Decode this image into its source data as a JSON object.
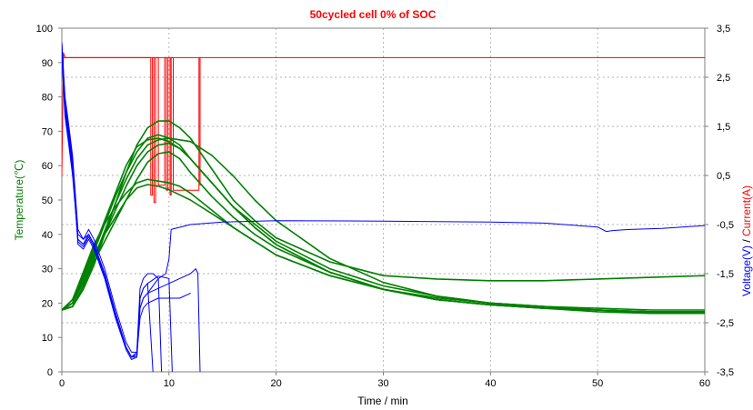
{
  "chart_data": {
    "type": "line",
    "title": "50cycled cell 0% of SOC",
    "xlabel": "Time / min",
    "ylabel_left": "Temperature(℃)",
    "ylabel_right_voltage": "Voltage(V)",
    "ylabel_right_sep": " / ",
    "ylabel_right_current": "Current(A)",
    "xlim": [
      0,
      60
    ],
    "ylim_left": [
      0,
      100
    ],
    "ylim_right": [
      -3.5,
      3.5
    ],
    "x_ticks": [
      "0",
      "10",
      "20",
      "30",
      "40",
      "50",
      "60"
    ],
    "y_left_ticks": [
      "0",
      "10",
      "20",
      "30",
      "40",
      "50",
      "60",
      "70",
      "80",
      "90",
      "100"
    ],
    "y_right_ticks": [
      "-3,5",
      "-2,5",
      "-1,5",
      "-0,5",
      "0,5",
      "1,5",
      "2,5",
      "3,5"
    ],
    "grid": true,
    "colors": {
      "temperature": "#008000",
      "voltage": "#0000ff",
      "current": "#ff0000",
      "title": "#ff0000"
    },
    "temperature_series": [
      {
        "x": [
          0,
          1,
          2,
          3,
          4,
          5,
          6,
          7,
          8,
          9,
          10,
          11,
          12,
          14,
          16,
          18,
          20,
          25,
          30,
          35,
          40,
          45,
          50,
          55,
          60
        ],
        "y": [
          18,
          19,
          24,
          31,
          40,
          49,
          58,
          66,
          71,
          73,
          73,
          71,
          68,
          59,
          50,
          44,
          39,
          32,
          28,
          27,
          26.5,
          26.5,
          27,
          27.5,
          28
        ]
      },
      {
        "x": [
          0,
          1,
          2,
          3,
          4,
          5,
          6,
          7,
          8,
          9,
          10,
          11,
          12,
          14,
          16,
          18,
          20,
          25,
          30,
          35,
          40,
          45,
          50,
          55,
          60
        ],
        "y": [
          18,
          19,
          25,
          33,
          41,
          49,
          56,
          62,
          66,
          67.5,
          68,
          67.5,
          67,
          63,
          57,
          50,
          44,
          33,
          26,
          22,
          20,
          19,
          18.5,
          18,
          18
        ]
      },
      {
        "x": [
          0,
          1,
          2,
          3,
          4,
          5,
          6,
          7,
          8,
          9,
          10,
          11,
          12,
          14,
          16,
          18,
          20,
          25,
          30,
          35,
          40,
          45,
          50,
          55,
          60
        ],
        "y": [
          18,
          20,
          27,
          35,
          43,
          51,
          58,
          64,
          68,
          69,
          68,
          66,
          62,
          55,
          48,
          43,
          38,
          30,
          25,
          22,
          20,
          19,
          18,
          17.5,
          17.5
        ]
      },
      {
        "x": [
          0,
          1,
          2,
          3,
          4,
          5,
          6,
          7,
          8,
          9,
          10,
          11,
          12,
          14,
          16,
          18,
          20,
          25,
          30,
          35,
          40,
          45,
          50,
          55,
          60
        ],
        "y": [
          18,
          20,
          26,
          33,
          40,
          47,
          54,
          60,
          64,
          66,
          66.5,
          65,
          62,
          55,
          48,
          42,
          37,
          29,
          24,
          21,
          19.5,
          18.5,
          18,
          17.5,
          17
        ]
      },
      {
        "x": [
          0,
          1,
          2,
          3,
          4,
          5,
          6,
          7,
          8,
          9,
          10,
          11,
          12,
          14,
          16,
          18,
          20,
          25,
          30,
          35,
          40,
          45,
          50,
          55,
          60
        ],
        "y": [
          18,
          19,
          25,
          32,
          38,
          44,
          50,
          56,
          61,
          63.5,
          64,
          62,
          58,
          51,
          45,
          40,
          36,
          29,
          24,
          21,
          19.5,
          18.5,
          18,
          17,
          17
        ]
      },
      {
        "x": [
          0,
          1,
          2,
          3,
          4,
          5,
          6,
          7,
          8,
          9,
          10,
          11,
          12,
          14,
          16,
          18,
          20,
          25,
          30,
          35,
          40,
          45,
          50,
          55,
          60
        ],
        "y": [
          18,
          21,
          29,
          37,
          43,
          48,
          52,
          55,
          56,
          55.5,
          55,
          54,
          52,
          47,
          42,
          38,
          34,
          28,
          24,
          21,
          19.5,
          18.5,
          18,
          17.5,
          17.5
        ]
      },
      {
        "x": [
          0,
          1,
          2,
          3,
          4,
          5,
          6,
          7,
          8,
          9,
          10,
          11,
          12,
          14,
          16,
          18,
          20,
          25,
          30,
          35,
          40,
          45,
          50,
          55,
          60
        ],
        "y": [
          18,
          21,
          27,
          34,
          40,
          45,
          50,
          53.5,
          54.5,
          54,
          53,
          51.5,
          50,
          46,
          42,
          38,
          34,
          28,
          24,
          21.5,
          20,
          19,
          18,
          17.5,
          17.5
        ]
      },
      {
        "x": [
          0,
          1,
          2,
          3,
          4,
          5,
          6,
          7,
          8,
          9,
          10,
          11,
          12,
          14,
          16,
          18,
          20,
          25,
          30,
          35,
          40,
          45,
          50,
          55,
          60
        ],
        "y": [
          18,
          20,
          28,
          36,
          44,
          52,
          60,
          65.5,
          67.5,
          68,
          67,
          65,
          62,
          55,
          48,
          42,
          37,
          29,
          24,
          21,
          19.5,
          18.5,
          17.5,
          17,
          17
        ]
      }
    ],
    "voltage_series": [
      {
        "x": [
          0,
          0.3,
          0.6,
          1,
          1.5,
          2,
          2.5,
          3,
          3.5,
          4,
          5,
          6,
          6.5,
          7,
          7.3,
          7.6,
          8,
          9,
          9.7,
          10,
          10.2,
          12,
          15,
          20,
          30,
          40,
          45,
          50,
          50.8,
          51.5,
          53,
          56,
          60
        ],
        "y": [
          3.2,
          2.0,
          1.5,
          0.8,
          -0.8,
          -0.9,
          -0.7,
          -0.9,
          -1.2,
          -1.5,
          -2.3,
          -3.0,
          -3.2,
          -3.2,
          -2.2,
          -2.0,
          -1.9,
          -1.6,
          -1.5,
          -1.2,
          -0.6,
          -0.5,
          -0.45,
          -0.42,
          -0.43,
          -0.45,
          -0.47,
          -0.55,
          -0.64,
          -0.62,
          -0.6,
          -0.58,
          -0.52
        ]
      },
      {
        "x": [
          0,
          0.3,
          0.6,
          1,
          1.5,
          2,
          2.5,
          3,
          3.5,
          4,
          5,
          6,
          6.5,
          7,
          7.3,
          7.6,
          8,
          8.5
        ],
        "y": [
          3.1,
          1.9,
          1.4,
          0.7,
          -0.9,
          -1.0,
          -0.8,
          -1.0,
          -1.3,
          -1.6,
          -2.4,
          -3.05,
          -3.25,
          -3.2,
          -2.0,
          -1.8,
          -1.7,
          -3.5
        ]
      },
      {
        "x": [
          0,
          0.3,
          0.6,
          1,
          1.5,
          2,
          2.5,
          3,
          3.5,
          4,
          5,
          6,
          6.5,
          7,
          7.3,
          7.6,
          8,
          8.5,
          9,
          9.3
        ],
        "y": [
          3.0,
          1.8,
          1.3,
          0.6,
          -0.7,
          -0.8,
          -0.6,
          -0.8,
          -1.1,
          -1.4,
          -2.2,
          -2.9,
          -3.1,
          -3.1,
          -1.8,
          -1.6,
          -1.5,
          -1.5,
          -1.6,
          -3.5
        ]
      },
      {
        "x": [
          0,
          0.3,
          0.6,
          1,
          1.5,
          2,
          2.5,
          3,
          3.5,
          4,
          5,
          6,
          6.5,
          7,
          7.3,
          7.6,
          8,
          9,
          10,
          10.3
        ],
        "y": [
          3.2,
          2.1,
          1.6,
          0.9,
          -0.6,
          -0.8,
          -0.7,
          -0.9,
          -1.2,
          -1.5,
          -2.3,
          -3.0,
          -3.2,
          -3.1,
          -2.0,
          -1.8,
          -1.7,
          -1.55,
          -1.6,
          -3.5
        ]
      },
      {
        "x": [
          0,
          0.3,
          0.6,
          1,
          1.5,
          2,
          2.5,
          3,
          3.5,
          4,
          5,
          6,
          6.5,
          7,
          7.3,
          7.6,
          8,
          9,
          10,
          11,
          12
        ],
        "y": [
          2.9,
          1.7,
          1.2,
          0.5,
          -0.8,
          -0.9,
          -0.7,
          -0.9,
          -1.2,
          -1.5,
          -2.3,
          -3.0,
          -3.2,
          -3.15,
          -2.4,
          -2.2,
          -2.1,
          -2.0,
          -2.0,
          -2.0,
          -1.9
        ]
      },
      {
        "x": [
          0,
          0.3,
          0.6,
          1,
          1.5,
          2,
          2.5,
          3,
          3.5,
          4,
          5,
          6,
          6.5,
          7,
          7.3,
          7.6,
          8,
          9,
          10,
          11,
          12,
          12.5,
          12.7,
          12.9
        ],
        "y": [
          3.1,
          1.9,
          1.4,
          0.8,
          -0.85,
          -0.95,
          -0.75,
          -0.95,
          -1.25,
          -1.55,
          -2.35,
          -3.0,
          -3.2,
          -3.15,
          -2.2,
          -2.0,
          -1.9,
          -1.8,
          -1.7,
          -1.6,
          -1.5,
          -1.4,
          -1.5,
          -3.5
        ]
      }
    ],
    "current_series": [
      {
        "x": [
          0,
          0.15,
          0.3,
          0.6,
          1,
          60
        ],
        "y": [
          0.5,
          3.0,
          2.9,
          2.9,
          2.9,
          2.9
        ]
      },
      {
        "x": [
          0,
          8.3,
          8.3,
          8.45,
          8.45,
          8.6,
          8.6,
          8.75,
          8.75,
          9.0,
          9.0,
          9.6,
          9.6,
          9.75,
          9.75,
          9.9,
          9.9,
          10.1,
          10.1,
          10.2,
          10.2,
          10.4,
          10.4,
          12.8,
          12.8,
          12.9,
          12.9
        ],
        "y": [
          2.9,
          2.9,
          0.1,
          0.1,
          2.9,
          2.9,
          -0.05,
          -0.05,
          2.9,
          2.9,
          0.3,
          0.3,
          2.9,
          2.9,
          0.2,
          0.2,
          2.9,
          2.9,
          0.1,
          0.1,
          2.9,
          2.9,
          0.2,
          0.2,
          2.9,
          2.9,
          0.3
        ]
      }
    ]
  }
}
